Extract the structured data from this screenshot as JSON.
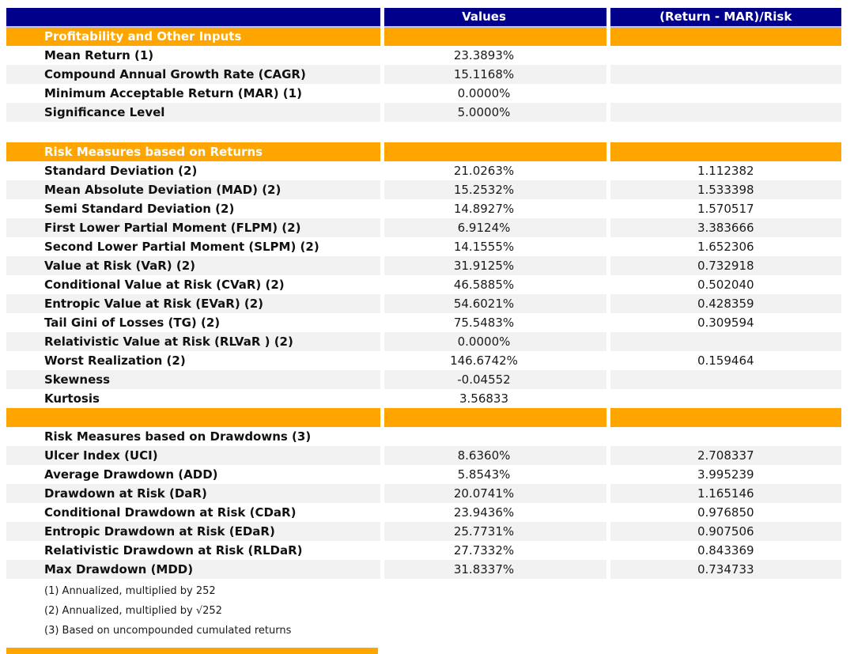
{
  "colors": {
    "header_bg": "#00008b",
    "section_bg": "#ffa500",
    "stripe_bg": "#f2f2f2",
    "header_separator": "#c4c4dc"
  },
  "table": {
    "columns": [
      "",
      "Values",
      "(Return - MAR)/Risk"
    ],
    "rows": [
      {
        "type": "section",
        "label": "Profitability and Other Inputs",
        "value": "",
        "risk": ""
      },
      {
        "type": "data",
        "label": "Mean Return (1)",
        "value": "23.3893%",
        "risk": ""
      },
      {
        "type": "data",
        "label": "Compound Annual Growth Rate (CAGR)",
        "value": "15.1168%",
        "risk": ""
      },
      {
        "type": "data",
        "label": "Minimum Acceptable Return (MAR) (1)",
        "value": "0.0000%",
        "risk": ""
      },
      {
        "type": "data",
        "label": "Significance Level",
        "value": "5.0000%",
        "risk": ""
      },
      {
        "type": "spacer",
        "label": "",
        "value": "",
        "risk": ""
      },
      {
        "type": "section",
        "label": "Risk Measures based on Returns",
        "value": "",
        "risk": ""
      },
      {
        "type": "data",
        "label": "Standard Deviation (2)",
        "value": "21.0263%",
        "risk": "1.112382"
      },
      {
        "type": "data",
        "label": "Mean Absolute Deviation (MAD) (2)",
        "value": "15.2532%",
        "risk": "1.533398"
      },
      {
        "type": "data",
        "label": "Semi Standard Deviation (2)",
        "value": "14.8927%",
        "risk": "1.570517"
      },
      {
        "type": "data",
        "label": "First Lower Partial Moment (FLPM) (2)",
        "value": "6.9124%",
        "risk": "3.383666"
      },
      {
        "type": "data",
        "label": "Second Lower Partial Moment (SLPM) (2)",
        "value": "14.1555%",
        "risk": "1.652306"
      },
      {
        "type": "data",
        "label": "Value at Risk (VaR) (2)",
        "value": "31.9125%",
        "risk": "0.732918"
      },
      {
        "type": "data",
        "label": "Conditional Value at Risk (CVaR) (2)",
        "value": "46.5885%",
        "risk": "0.502040"
      },
      {
        "type": "data",
        "label": "Entropic Value at Risk (EVaR) (2)",
        "value": "54.6021%",
        "risk": "0.428359"
      },
      {
        "type": "data",
        "label": "Tail Gini of Losses (TG) (2)",
        "value": "75.5483%",
        "risk": "0.309594"
      },
      {
        "type": "data",
        "label": "Relativistic Value at Risk (RLVaR ) (2)",
        "value": "0.0000%",
        "risk": ""
      },
      {
        "type": "data",
        "label": "Worst Realization (2)",
        "value": "146.6742%",
        "risk": "0.159464"
      },
      {
        "type": "data",
        "label": "Skewness",
        "value": "-0.04552",
        "risk": ""
      },
      {
        "type": "data",
        "label": "Kurtosis",
        "value": "3.56833",
        "risk": ""
      },
      {
        "type": "section",
        "label": "",
        "value": "",
        "risk": ""
      },
      {
        "type": "subheader",
        "label": "Risk Measures based on Drawdowns (3)",
        "value": "",
        "risk": ""
      },
      {
        "type": "data",
        "label": "Ulcer Index (UCI)",
        "value": "8.6360%",
        "risk": "2.708337"
      },
      {
        "type": "data",
        "label": "Average Drawdown (ADD)",
        "value": "5.8543%",
        "risk": "3.995239"
      },
      {
        "type": "data",
        "label": "Drawdown at Risk (DaR)",
        "value": "20.0741%",
        "risk": "1.165146"
      },
      {
        "type": "data",
        "label": "Conditional Drawdown at Risk (CDaR)",
        "value": "23.9436%",
        "risk": "0.976850"
      },
      {
        "type": "data",
        "label": "Entropic Drawdown at Risk (EDaR)",
        "value": "25.7731%",
        "risk": "0.907506"
      },
      {
        "type": "data",
        "label": "Relativistic Drawdown at Risk (RLDaR)",
        "value": "27.7332%",
        "risk": "0.843369"
      },
      {
        "type": "data",
        "label": "Max Drawdown (MDD)",
        "value": "31.8337%",
        "risk": "0.734733"
      }
    ],
    "footnotes": [
      "(1) Annualized, multiplied by 252",
      "(2) Annualized, multiplied by √252",
      "(3) Based on uncompounded cumulated returns"
    ]
  }
}
